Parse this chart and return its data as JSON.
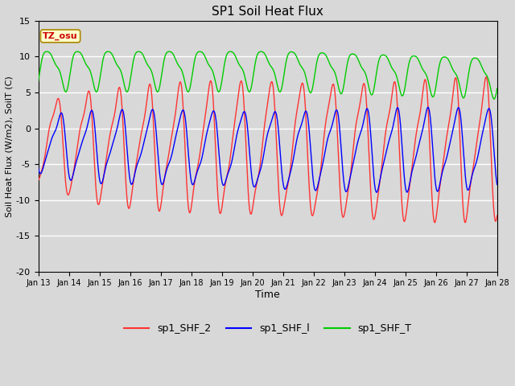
{
  "title": "SP1 Soil Heat Flux",
  "xlabel": "Time",
  "ylabel": "Soil Heat Flux (W/m2), SoilT (C)",
  "ylim": [
    -20,
    15
  ],
  "xlim": [
    13,
    28
  ],
  "yticks": [
    -20,
    -15,
    -10,
    -5,
    0,
    5,
    10,
    15
  ],
  "xtick_days": [
    13,
    14,
    15,
    16,
    17,
    18,
    19,
    20,
    21,
    22,
    23,
    24,
    25,
    26,
    27,
    28
  ],
  "colors": {
    "sp1_SHF_2": "#ff3333",
    "sp1_SHF_1": "#0000ff",
    "sp1_SHF_T": "#00cc00"
  },
  "legend_labels": [
    "sp1_SHF_2",
    "sp1_SHF_l",
    "sp1_SHF_T"
  ],
  "tz_label": "TZ_osu",
  "bg_color": "#d8d8d8",
  "grid_color": "#ffffff"
}
